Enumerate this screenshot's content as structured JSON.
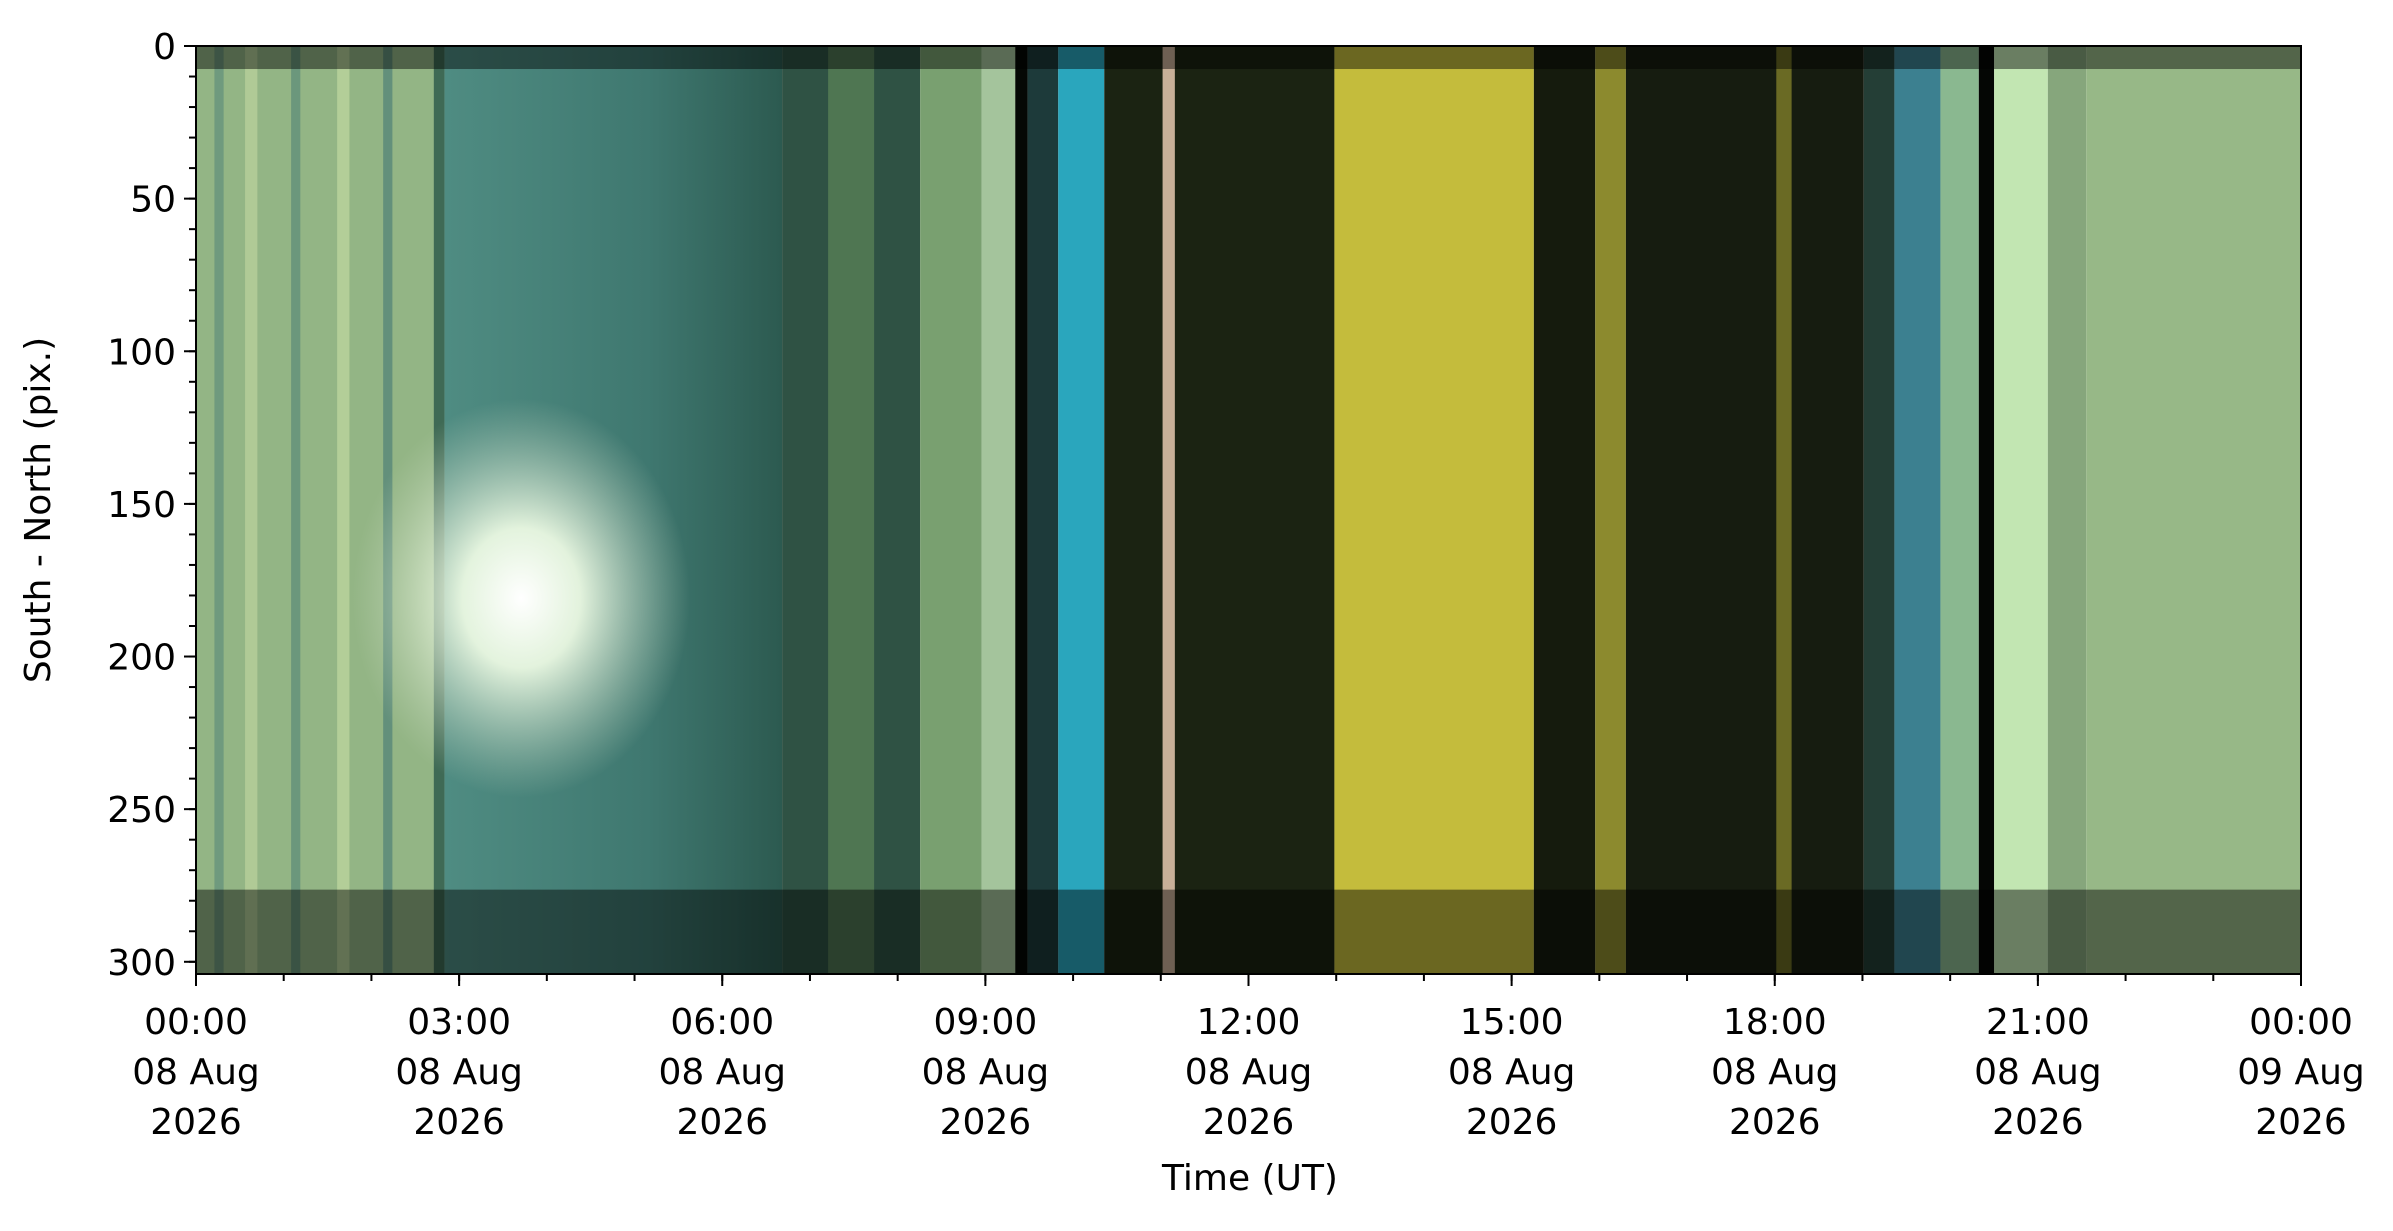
{
  "chart_data": {
    "type": "keogram",
    "xlabel": "Time (UT)",
    "ylabel": "South - North (pix.)",
    "xlim": [
      "2026-08-08T00:00Z",
      "2026-08-09T00:00Z"
    ],
    "xticks": [
      {
        "value": "2026-08-08T00:00Z",
        "label": [
          "00:00",
          "08 Aug",
          "2026"
        ]
      },
      {
        "value": "2026-08-08T03:00Z",
        "label": [
          "03:00",
          "08 Aug",
          "2026"
        ]
      },
      {
        "value": "2026-08-08T06:00Z",
        "label": [
          "06:00",
          "08 Aug",
          "2026"
        ]
      },
      {
        "value": "2026-08-08T09:00Z",
        "label": [
          "09:00",
          "08 Aug",
          "2026"
        ]
      },
      {
        "value": "2026-08-08T12:00Z",
        "label": [
          "12:00",
          "08 Aug",
          "2026"
        ]
      },
      {
        "value": "2026-08-08T15:00Z",
        "label": [
          "15:00",
          "08 Aug",
          "2026"
        ]
      },
      {
        "value": "2026-08-08T18:00Z",
        "label": [
          "18:00",
          "08 Aug",
          "2026"
        ]
      },
      {
        "value": "2026-08-08T21:00Z",
        "label": [
          "21:00",
          "08 Aug",
          "2026"
        ]
      },
      {
        "value": "2026-08-09T00:00Z",
        "label": [
          "00:00",
          "09 Aug",
          "2026"
        ]
      }
    ],
    "ylim": [
      0,
      304
    ],
    "yticks": [
      0,
      50,
      100,
      150,
      200,
      250,
      300
    ],
    "y_inverted": true,
    "minor_ticks": {
      "x_hours": 1,
      "y": 10
    }
  }
}
